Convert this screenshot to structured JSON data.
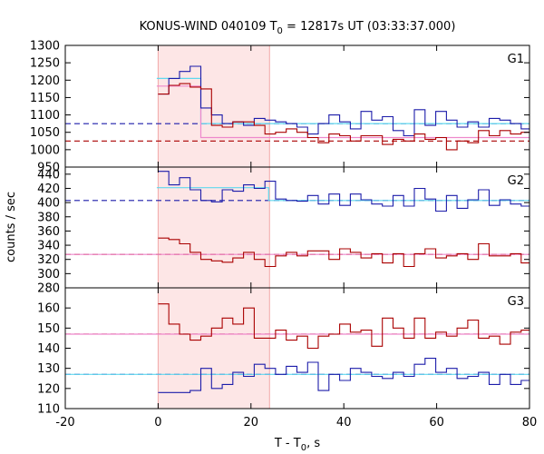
{
  "chart_data": {
    "type": "line",
    "title": "KONUS-WIND 040109 T0 = 12817s UT (03:33:37.000)",
    "title_parts": {
      "prefix": "KONUS-WIND 040109 T",
      "sub": "0",
      "suffix": " = 12817s UT (03:33:37.000)"
    },
    "xlabel": "T - T0, s",
    "xlabel_parts": {
      "prefix": "T - T",
      "sub": "0",
      "suffix": ", s"
    },
    "ylabel": "counts / sec",
    "xlim": [
      -20,
      80
    ],
    "xticks": [
      -20,
      0,
      20,
      40,
      60,
      80
    ],
    "xtick_labels": [
      "-20",
      "0",
      "20",
      "40",
      "60",
      "80"
    ],
    "shaded_interval": [
      0,
      24
    ],
    "bin_edges": [
      0,
      2.3,
      4.6,
      6.9,
      9.2,
      11.5,
      13.8,
      16.1,
      18.4,
      20.7,
      23,
      25.3,
      27.6,
      29.9,
      32.2,
      34.5,
      36.8,
      39.1,
      41.4,
      43.7,
      46,
      48.3,
      50.6,
      52.9,
      55.2,
      57.5,
      59.8,
      62.1,
      64.4,
      66.7,
      69,
      71.3,
      73.6,
      75.9,
      78.2,
      80
    ],
    "panels": [
      {
        "label": "G1",
        "ylim": [
          950,
          1300
        ],
        "yticks": [
          950,
          1000,
          1050,
          1100,
          1150,
          1200,
          1250,
          1300
        ],
        "ytick_labels": [
          "950",
          "1000",
          "1050",
          "1100",
          "1150",
          "1200",
          "1250",
          "1300"
        ],
        "series": [
          {
            "name": "blue histogram",
            "color": "#1c1caa",
            "style": "step",
            "values": [
              1160,
              1205,
              1225,
              1240,
              1120,
              1100,
              1075,
              1080,
              1070,
              1090,
              1085,
              1080,
              1075,
              1065,
              1045,
              1075,
              1100,
              1080,
              1060,
              1110,
              1085,
              1095,
              1055,
              1040,
              1115,
              1070,
              1110,
              1085,
              1065,
              1080,
              1065,
              1090,
              1085,
              1075,
              1060
            ]
          },
          {
            "name": "red histogram",
            "color": "#aa0000",
            "style": "step",
            "values": [
              1160,
              1185,
              1190,
              1180,
              1175,
              1070,
              1065,
              1080,
              1080,
              1070,
              1045,
              1050,
              1060,
              1050,
              1035,
              1020,
              1045,
              1040,
              1025,
              1040,
              1040,
              1015,
              1030,
              1025,
              1045,
              1030,
              1035,
              1000,
              1025,
              1020,
              1055,
              1040,
              1055,
              1045,
              1050
            ]
          },
          {
            "name": "blue background",
            "color": "#1c1caa",
            "style": "dashed",
            "y": 1075
          },
          {
            "name": "red background",
            "color": "#aa0000",
            "style": "dashed",
            "y": 1025
          },
          {
            "name": "cyan model",
            "color": "#60d8ee",
            "style": "model",
            "points": [
              [
                -0.3,
                1205
              ],
              [
                9.2,
                1205
              ],
              [
                9.2,
                1075
              ],
              [
                80,
                1075
              ]
            ]
          },
          {
            "name": "pink model",
            "color": "#ee88cc",
            "style": "model",
            "points": [
              [
                -0.3,
                1183
              ],
              [
                9.2,
                1183
              ],
              [
                9.2,
                1035
              ],
              [
                80,
                1035
              ]
            ]
          }
        ]
      },
      {
        "label": "G2",
        "ylim": [
          280,
          450
        ],
        "yticks": [
          280,
          300,
          320,
          340,
          360,
          380,
          400,
          420,
          440
        ],
        "ytick_labels": [
          "280",
          "300",
          "320",
          "340",
          "360",
          "380",
          "400",
          "420",
          "440"
        ],
        "series": [
          {
            "name": "blue histogram",
            "color": "#1c1caa",
            "style": "step",
            "values": [
              444,
              425,
              435,
              418,
              403,
              401,
              418,
              416,
              425,
              420,
              430,
              405,
              403,
              402,
              410,
              398,
              412,
              396,
              412,
              404,
              398,
              395,
              410,
              395,
              420,
              405,
              388,
              410,
              392,
              404,
              418,
              396,
              404,
              398,
              395
            ]
          },
          {
            "name": "red histogram",
            "color": "#aa0000",
            "style": "step",
            "values": [
              350,
              348,
              342,
              330,
              320,
              318,
              316,
              322,
              330,
              320,
              310,
              325,
              330,
              325,
              332,
              332,
              320,
              335,
              330,
              322,
              328,
              315,
              328,
              310,
              328,
              335,
              322,
              325,
              328,
              320,
              342,
              325,
              325,
              328,
              315
            ]
          },
          {
            "name": "blue background",
            "color": "#1c1caa",
            "style": "dashed",
            "y": 403
          },
          {
            "name": "red background",
            "color": "#aa0000",
            "style": "dashed",
            "y": 327
          },
          {
            "name": "cyan model",
            "color": "#60d8ee",
            "style": "model",
            "points": [
              [
                -0.3,
                421
              ],
              [
                23.8,
                421
              ],
              [
                23.8,
                403
              ],
              [
                80,
                403
              ]
            ]
          },
          {
            "name": "pink model",
            "color": "#ee88cc",
            "style": "model",
            "points": [
              [
                -20,
                327
              ],
              [
                80,
                327
              ]
            ]
          }
        ]
      },
      {
        "label": "G3",
        "ylim": [
          110,
          170
        ],
        "yticks": [
          110,
          120,
          130,
          140,
          150,
          160
        ],
        "ytick_labels": [
          "110",
          "120",
          "130",
          "140",
          "150",
          "160"
        ],
        "series": [
          {
            "name": "blue histogram",
            "color": "#1c1caa",
            "style": "step",
            "values": [
              118,
              118,
              118,
              119,
              130,
              120,
              122,
              128,
              126,
              132,
              130,
              127,
              131,
              128,
              133,
              119,
              127,
              124,
              130,
              128,
              126,
              125,
              128,
              126,
              132,
              135,
              128,
              130,
              125,
              126,
              128,
              122,
              127,
              122,
              124
            ]
          },
          {
            "name": "red histogram",
            "color": "#aa0000",
            "style": "step",
            "values": [
              162,
              152,
              147,
              144,
              146,
              150,
              155,
              152,
              160,
              145,
              145,
              149,
              144,
              146,
              140,
              146,
              147,
              152,
              148,
              149,
              141,
              155,
              150,
              145,
              155,
              145,
              148,
              146,
              150,
              154,
              145,
              146,
              142,
              148,
              149
            ]
          },
          {
            "name": "blue background",
            "color": "#1c1caa",
            "style": "dashed",
            "y": 127
          },
          {
            "name": "red background",
            "color": "#aa0000",
            "style": "dashed",
            "y": 147
          },
          {
            "name": "cyan model",
            "color": "#60d8ee",
            "style": "model",
            "points": [
              [
                -20,
                127
              ],
              [
                80,
                127
              ]
            ]
          },
          {
            "name": "pink model",
            "color": "#ee88cc",
            "style": "model",
            "points": [
              [
                -20,
                147
              ],
              [
                80,
                147
              ]
            ]
          }
        ]
      }
    ]
  }
}
